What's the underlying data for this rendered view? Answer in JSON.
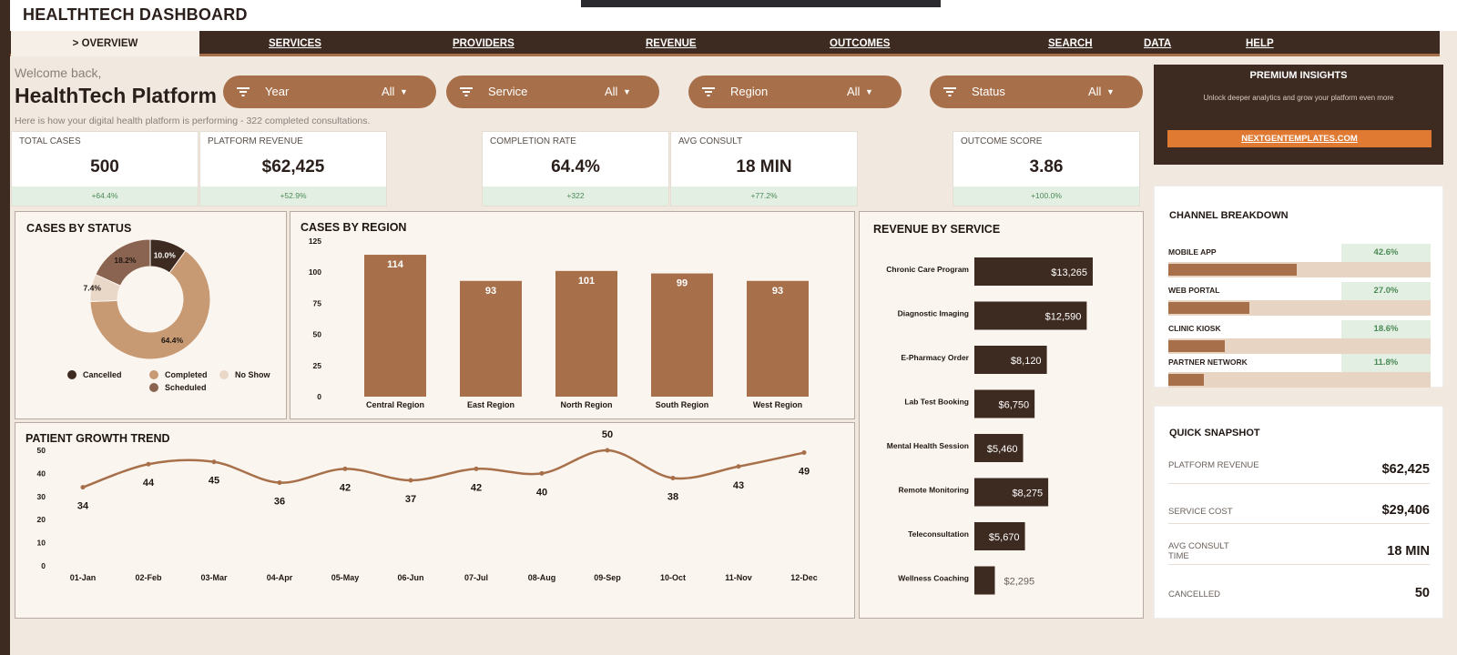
{
  "app": {
    "title": "HEALTHTECH DASHBOARD"
  },
  "nav": {
    "items": [
      "> OVERVIEW",
      "SERVICES",
      "PROVIDERS",
      "REVENUE",
      "OUTCOMES",
      "SEARCH",
      "DATA",
      "HELP"
    ],
    "active": 0
  },
  "header": {
    "welcome": "Welcome back,",
    "platform": "HealthTech Platform",
    "subtitle": "Here is how your digital health platform is performing  -  322 completed consultations."
  },
  "filters": [
    {
      "label": "Year",
      "value": "All"
    },
    {
      "label": "Service",
      "value": "All"
    },
    {
      "label": "Region",
      "value": "All"
    },
    {
      "label": "Status",
      "value": "All"
    }
  ],
  "kpis": [
    {
      "label": "TOTAL CASES",
      "value": "500",
      "change": "+64.4%"
    },
    {
      "label": "PLATFORM REVENUE",
      "value": "$62,425",
      "change": "+52.9%"
    },
    {
      "label": "COMPLETION RATE",
      "value": "64.4%",
      "change": "+322"
    },
    {
      "label": "AVG CONSULT",
      "value": "18 MIN",
      "change": "+77.2%"
    },
    {
      "label": "OUTCOME SCORE",
      "value": "3.86",
      "change": "+100.0%"
    }
  ],
  "premium": {
    "title": "PREMIUM INSIGHTS",
    "subtitle": "Unlock deeper analytics and grow your platform even more",
    "button": "NEXTGENTEMPLATES.COM"
  },
  "channel": {
    "title": "CHANNEL BREAKDOWN",
    "items": [
      {
        "label": "MOBILE APP",
        "pct": "42.6%",
        "value": 42.6
      },
      {
        "label": "WEB PORTAL",
        "pct": "27.0%",
        "value": 27.0
      },
      {
        "label": "CLINIC KIOSK",
        "pct": "18.6%",
        "value": 18.6
      },
      {
        "label": "PARTNER NETWORK",
        "pct": "11.8%",
        "value": 11.8
      }
    ]
  },
  "snapshot": {
    "title": "QUICK SNAPSHOT",
    "rows": [
      {
        "label": "PLATFORM REVENUE",
        "value": "$62,425"
      },
      {
        "label": "SERVICE COST",
        "value": "$29,406"
      },
      {
        "label": "AVG CONSULT TIME",
        "value": "18 MIN"
      },
      {
        "label": "CANCELLED",
        "value": "50"
      }
    ]
  },
  "colors": {
    "dark": "#3d2a20",
    "accent": "#a8704a",
    "light": "#c79a74",
    "pale": "#e9d8c8",
    "bg": "#f1e8e0",
    "cta": "#e07a32",
    "positive": "#4a8a56"
  },
  "chart_data": [
    {
      "type": "pie",
      "title": "CASES BY STATUS",
      "categories": [
        "Cancelled",
        "Completed",
        "No Show",
        "Scheduled"
      ],
      "values": [
        10.0,
        64.4,
        7.4,
        18.2
      ],
      "labels": [
        "10.0%",
        "64.4%",
        "7.4%",
        "18.2%"
      ],
      "colors": [
        "#3d2a20",
        "#c79a74",
        "#e9d8c8",
        "#8a6450"
      ],
      "legend": "bottom"
    },
    {
      "type": "bar",
      "title": "CASES BY REGION",
      "categories": [
        "Central Region",
        "East Region",
        "North Region",
        "South Region",
        "West Region"
      ],
      "values": [
        114,
        93,
        101,
        99,
        93
      ],
      "ylim": [
        0,
        125
      ],
      "yticks": [
        0,
        25,
        50,
        75,
        100,
        125
      ]
    },
    {
      "type": "bar",
      "orientation": "horizontal",
      "title": "REVENUE BY SERVICE",
      "categories": [
        "Chronic Care Program",
        "Diagnostic Imaging",
        "E-Pharmacy Order",
        "Lab Test Booking",
        "Mental Health Session",
        "Remote Monitoring",
        "Teleconsultation",
        "Wellness Coaching"
      ],
      "values": [
        13265,
        12590,
        8120,
        6750,
        5460,
        8275,
        5670,
        2295
      ],
      "labels": [
        "$13,265",
        "$12,590",
        "$8,120",
        "$6,750",
        "$5,460",
        "$8,275",
        "$5,670",
        "$2,295"
      ]
    },
    {
      "type": "line",
      "title": "PATIENT GROWTH TREND",
      "x": [
        "01-Jan",
        "02-Feb",
        "03-Mar",
        "04-Apr",
        "05-May",
        "06-Jun",
        "07-Jul",
        "08-Aug",
        "09-Sep",
        "10-Oct",
        "11-Nov",
        "12-Dec"
      ],
      "values": [
        34,
        44,
        45,
        36,
        42,
        37,
        42,
        40,
        50,
        38,
        43,
        49
      ],
      "ylim": [
        0,
        50
      ],
      "yticks": [
        0,
        10,
        20,
        30,
        40,
        50
      ]
    }
  ]
}
